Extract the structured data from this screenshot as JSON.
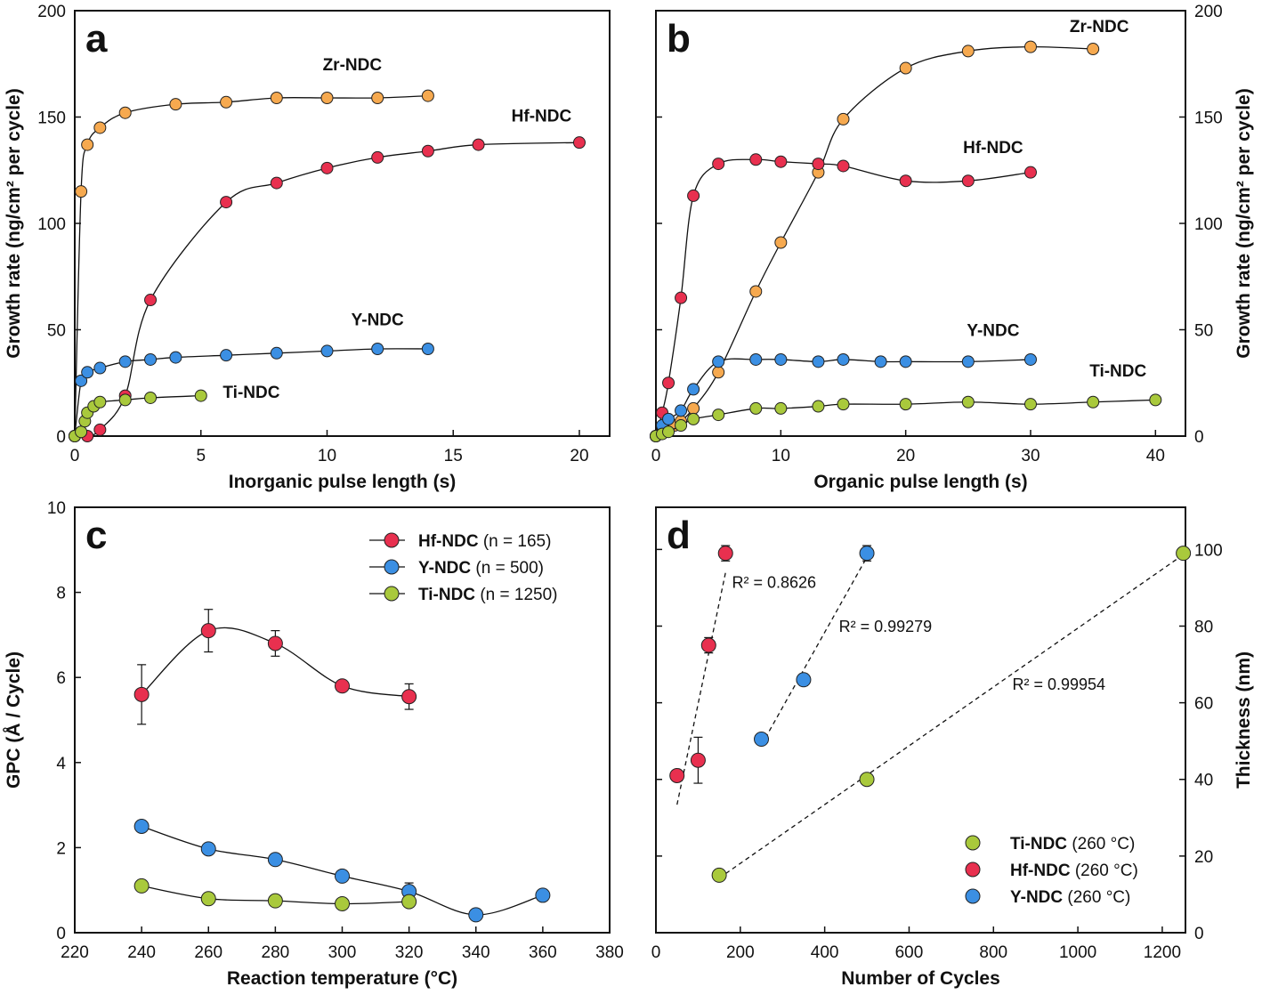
{
  "chart_data": [
    {
      "type": "line",
      "letter": "a",
      "x_label": "Inorganic pulse length (s)",
      "y_label": "Growth rate (ng/cm² per cycle)",
      "xlim": [
        0,
        21.2
      ],
      "xticks": [
        0,
        5,
        10,
        15,
        20
      ],
      "ylim": [
        0,
        200
      ],
      "yticks": [
        0,
        50,
        100,
        150,
        200
      ],
      "y_axis_side": "left",
      "series": [
        {
          "name": "Zr-NDC",
          "color": "#f6a94f",
          "x": [
            0,
            0.25,
            0.5,
            1,
            2,
            4,
            6,
            8,
            10,
            12,
            14
          ],
          "values": [
            0,
            115,
            137,
            145,
            152,
            156,
            157,
            159,
            159,
            159,
            160
          ]
        },
        {
          "name": "Hf-NDC",
          "color": "#e8304f",
          "x": [
            0,
            0.5,
            1,
            2,
            3,
            6,
            8,
            10,
            12,
            14,
            16,
            20
          ],
          "values": [
            0,
            0,
            3,
            19,
            64,
            110,
            119,
            126,
            131,
            134,
            137,
            138
          ]
        },
        {
          "name": "Y-NDC",
          "color": "#3b8fe3",
          "x": [
            0,
            0.25,
            0.5,
            1,
            2,
            3,
            4,
            6,
            8,
            10,
            12,
            14
          ],
          "values": [
            0,
            26,
            30,
            32,
            35,
            36,
            37,
            38,
            39,
            40,
            41,
            41
          ]
        },
        {
          "name": "Ti-NDC",
          "color": "#a9c93c",
          "x": [
            0,
            0.25,
            0.4,
            0.5,
            0.75,
            1,
            2,
            3,
            5
          ],
          "values": [
            0,
            2,
            7,
            11,
            14,
            16,
            17,
            18,
            19
          ]
        }
      ]
    },
    {
      "type": "line",
      "letter": "b",
      "x_label": "Organic pulse length (s)",
      "y_label": "Growth rate (ng/cm² per cycle)",
      "xlim": [
        0,
        42.4
      ],
      "xticks": [
        0,
        10,
        20,
        30,
        40
      ],
      "ylim": [
        0,
        200
      ],
      "yticks": [
        0,
        50,
        100,
        150,
        200
      ],
      "y_axis_side": "right",
      "series": [
        {
          "name": "Zr-NDC",
          "color": "#f6a94f",
          "x": [
            0,
            0.5,
            1,
            1.5,
            2,
            3,
            5,
            8,
            10,
            13,
            15,
            20,
            25,
            30,
            35
          ],
          "values": [
            0,
            2,
            3,
            5,
            7,
            13,
            30,
            68,
            91,
            124,
            149,
            173,
            181,
            183,
            182
          ]
        },
        {
          "name": "Hf-NDC",
          "color": "#e8304f",
          "x": [
            0,
            0.5,
            1,
            2,
            3,
            5,
            8,
            10,
            13,
            15,
            20,
            25,
            30
          ],
          "values": [
            0,
            11,
            25,
            65,
            113,
            128,
            130,
            129,
            128,
            127,
            120,
            120,
            124
          ]
        },
        {
          "name": "Y-NDC",
          "color": "#3b8fe3",
          "x": [
            0,
            0.5,
            1,
            2,
            3,
            5,
            8,
            10,
            13,
            15,
            18,
            20,
            25,
            30
          ],
          "values": [
            0,
            5,
            8,
            12,
            22,
            35,
            36,
            36,
            35,
            36,
            35,
            35,
            35,
            36
          ]
        },
        {
          "name": "Ti-NDC",
          "color": "#a9c93c",
          "x": [
            0,
            0.5,
            1,
            2,
            3,
            5,
            8,
            10,
            13,
            15,
            20,
            25,
            30,
            35,
            40
          ],
          "values": [
            0,
            1,
            2,
            5,
            8,
            10,
            13,
            13,
            14,
            15,
            15,
            16,
            15,
            16,
            17
          ]
        }
      ]
    },
    {
      "type": "line",
      "letter": "c",
      "x_label": "Reaction temperature (°C)",
      "y_label": "GPC (Å / Cycle)",
      "xlim": [
        220,
        380
      ],
      "xticks": [
        220,
        240,
        260,
        280,
        300,
        320,
        340,
        360,
        380
      ],
      "ylim": [
        0,
        10
      ],
      "yticks": [
        0,
        2,
        4,
        6,
        8,
        10
      ],
      "y_axis_side": "left",
      "legend": "top-right",
      "series": [
        {
          "name": "Hf-NDC",
          "note": "(n = 165)",
          "color": "#e8304f",
          "x": [
            240,
            260,
            280,
            300,
            320
          ],
          "values": [
            5.6,
            7.1,
            6.8,
            5.8,
            5.55
          ],
          "errors": [
            0.7,
            0.5,
            0.3,
            null,
            0.3
          ]
        },
        {
          "name": "Y-NDC",
          "note": "(n = 500)",
          "color": "#3b8fe3",
          "x": [
            240,
            260,
            280,
            300,
            320,
            340,
            360
          ],
          "values": [
            2.5,
            1.97,
            1.72,
            1.33,
            0.97,
            0.42,
            0.88
          ],
          "errors": [
            null,
            null,
            null,
            null,
            0.2,
            null,
            null
          ]
        },
        {
          "name": "Ti-NDC",
          "note": "(n = 1250)",
          "color": "#a9c93c",
          "x": [
            240,
            260,
            280,
            300,
            320
          ],
          "values": [
            1.1,
            0.8,
            0.75,
            0.68,
            0.73
          ]
        }
      ]
    },
    {
      "type": "scatter",
      "letter": "d",
      "x_label": "Number of Cycles",
      "y_label": "Thickness (nm)",
      "xlim": [
        0,
        1255
      ],
      "xticks": [
        0,
        200,
        400,
        600,
        800,
        1000,
        1200
      ],
      "ylim": [
        0,
        111
      ],
      "yticks": [
        0,
        20,
        40,
        60,
        80,
        100
      ],
      "y_axis_side": "right",
      "legend": "bottom-right",
      "series": [
        {
          "name": "Ti-NDC",
          "note": "(260 °C)",
          "color": "#a9c93c",
          "x": [
            150,
            500,
            1250
          ],
          "values": [
            15,
            40,
            99
          ],
          "annotation": "R² = 0.99954"
        },
        {
          "name": "Hf-NDC",
          "note": "(260 °C)",
          "color": "#e8304f",
          "x": [
            50,
            100,
            125,
            165
          ],
          "values": [
            41,
            45,
            75,
            99
          ],
          "errors": [
            null,
            6,
            2,
            2
          ],
          "annotation": "R² = 0.8626"
        },
        {
          "name": "Y-NDC",
          "note": "(260 °C)",
          "color": "#3b8fe3",
          "x": [
            250,
            350,
            500
          ],
          "values": [
            50.5,
            66,
            99
          ],
          "errors": [
            null,
            1.5,
            2
          ],
          "annotation": "R² = 0.99279"
        }
      ]
    }
  ]
}
